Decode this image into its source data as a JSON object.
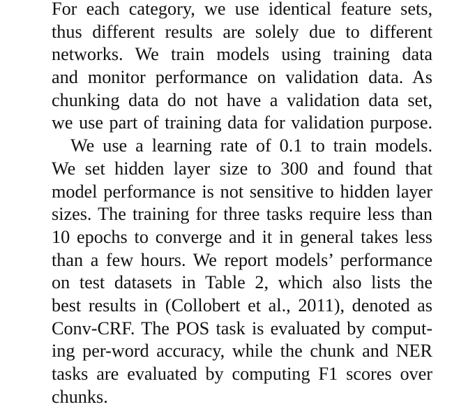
{
  "paragraphs": [
    {
      "indent": false,
      "lines": [
        "For each category, we use identical feature sets,",
        "thus different results are solely due to different",
        "networks.  We train models using training data",
        "and monitor performance on validation data.  As",
        "chunking data do not have a validation data set,",
        "we use part of training data for validation purpose."
      ]
    },
    {
      "indent": true,
      "lines": [
        "We use a learning rate of 0.1 to train models.",
        "We set hidden layer size to 300 and found that",
        "model performance is not sensitive to hidden layer",
        "sizes. The training for three tasks require less than",
        "10 epochs to converge and it in general takes less",
        "than a few hours. We report models’ performance",
        "on test datasets in Table 2, which also lists the",
        "best results in (Collobert et al., 2011), denoted as",
        "Conv-CRF. The POS task is evaluated by comput-",
        "ing per-word accuracy, while the chunk and NER",
        "tasks are evaluated by computing F1 scores over",
        "chunks."
      ]
    }
  ]
}
